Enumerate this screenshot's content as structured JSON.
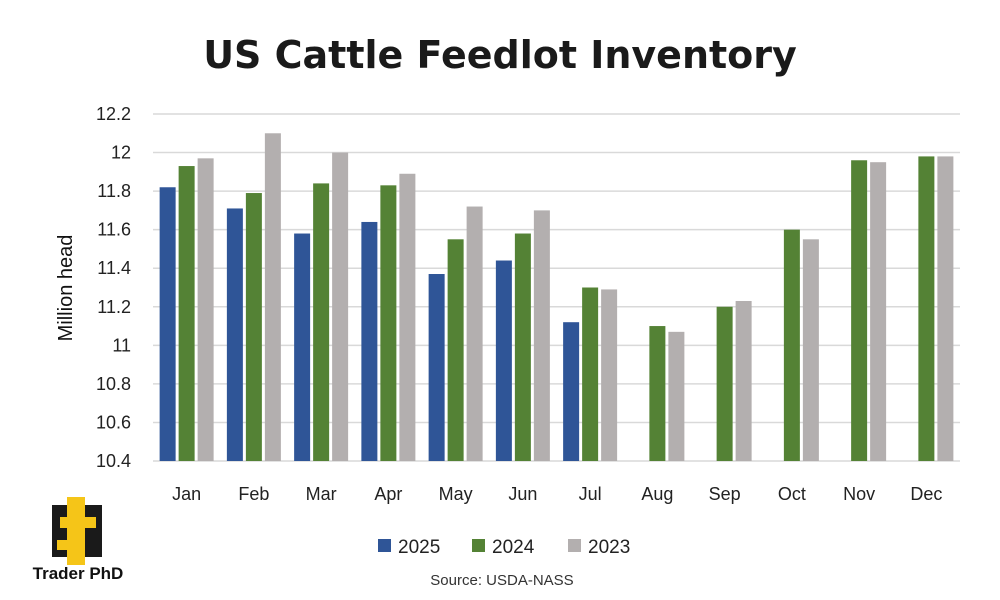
{
  "brand": {
    "name": "Trader PhD"
  },
  "source": "Source: USDA-NASS",
  "colors": {
    "2025": "#2f5597",
    "2024": "#548235",
    "2023": "#b3afaf",
    "grid": "#d9d9d9",
    "logo_yellow": "#f5c518",
    "logo_dark": "#1a1a1a"
  },
  "chart_data": {
    "type": "bar",
    "title": "US Cattle Feedlot Inventory",
    "xlabel": "",
    "ylabel": "Million head",
    "ylim": [
      10.4,
      12.2
    ],
    "yticks": [
      10.4,
      10.6,
      10.8,
      11,
      11.2,
      11.4,
      11.6,
      11.8,
      12,
      12.2
    ],
    "ytick_labels": [
      "10.4",
      "10.6",
      "10.8",
      "11",
      "11.2",
      "11.4",
      "11.6",
      "11.8",
      "12",
      "12.2"
    ],
    "grid": true,
    "legend_position": "bottom",
    "categories": [
      "Jan",
      "Feb",
      "Mar",
      "Apr",
      "May",
      "Jun",
      "Jul",
      "Aug",
      "Sep",
      "Oct",
      "Nov",
      "Dec"
    ],
    "series": [
      {
        "name": "2025",
        "color": "#2f5597",
        "values": [
          11.82,
          11.71,
          11.58,
          11.64,
          11.37,
          11.44,
          11.12,
          null,
          null,
          null,
          null,
          null
        ]
      },
      {
        "name": "2024",
        "color": "#548235",
        "values": [
          11.93,
          11.79,
          11.84,
          11.83,
          11.55,
          11.58,
          11.3,
          11.1,
          11.2,
          11.6,
          11.96,
          11.98
        ]
      },
      {
        "name": "2023",
        "color": "#b3afaf",
        "values": [
          11.97,
          12.1,
          12.0,
          11.89,
          11.72,
          11.7,
          11.29,
          11.07,
          11.23,
          11.55,
          11.95,
          11.98
        ]
      }
    ]
  }
}
